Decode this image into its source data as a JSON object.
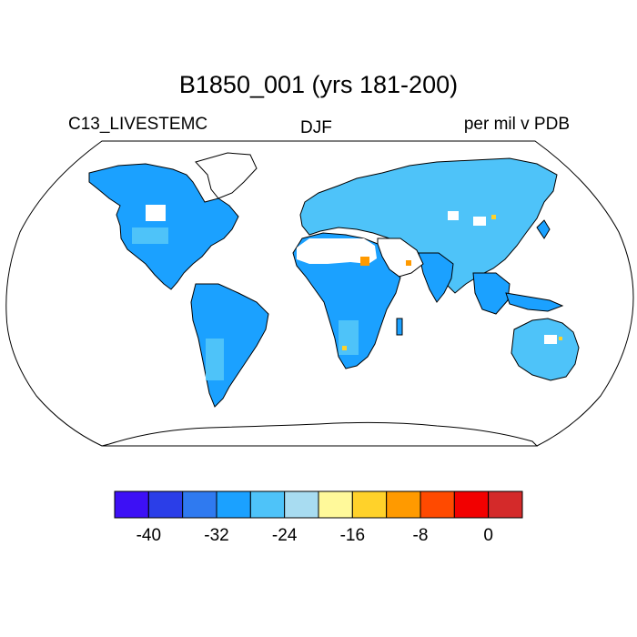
{
  "map": {
    "title": "B1850_001 (yrs 181-200)",
    "variable": "C13_LIVESTEMC",
    "season": "DJF",
    "units": "per mil v PDB",
    "projection": "robinson",
    "ocean_color": "#ffffff",
    "land_main_color": "#1ba1ff",
    "land_alt_color": "#4ec3f9",
    "outline_color": "#000000",
    "regions": [
      {
        "name": "north-america",
        "fill": "#1ba1ff"
      },
      {
        "name": "greenland",
        "fill": "#ffffff"
      },
      {
        "name": "south-america",
        "fill": "#1ba1ff"
      },
      {
        "name": "europe-asia",
        "fill": "#4ec3f9"
      },
      {
        "name": "africa",
        "fill": "#1ba1ff"
      },
      {
        "name": "sahara",
        "fill": "#ffffff"
      },
      {
        "name": "arabia",
        "fill": "#ffffff"
      },
      {
        "name": "australia",
        "fill": "#4ec3f9"
      },
      {
        "name": "antarctica",
        "fill": "#ffffff"
      }
    ]
  },
  "colorbar": {
    "colors": [
      "#3d10f5",
      "#2b3ee8",
      "#2f7af0",
      "#1ba1ff",
      "#4ec3f9",
      "#a8dcf1",
      "#fff99a",
      "#ffd22a",
      "#ff9a00",
      "#ff4a00",
      "#f20000",
      "#d42a2a"
    ],
    "tick_labels": [
      "-40",
      "-32",
      "-24",
      "-16",
      "-8",
      "0"
    ],
    "min": -44,
    "max": 4,
    "tick_values": [
      -40,
      -32,
      -24,
      -16,
      -8,
      0
    ]
  }
}
